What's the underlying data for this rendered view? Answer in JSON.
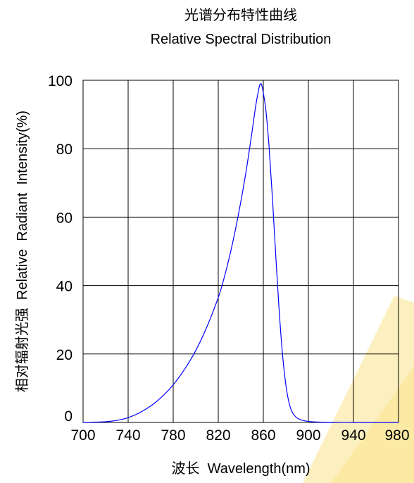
{
  "chart_data": {
    "type": "line",
    "title": "光谱分布特性曲线",
    "subtitle": "Relative Spectral Distribution",
    "xlabel": "波长  Wavelength(nm)",
    "ylabel": "相对辐射光强  Relative  Radiant  Intensity(%)",
    "xlim": [
      700,
      980
    ],
    "ylim": [
      0,
      100
    ],
    "x_ticks": [
      700,
      740,
      780,
      820,
      860,
      900,
      940,
      980
    ],
    "y_ticks": [
      0,
      20,
      40,
      60,
      80,
      100
    ],
    "x_tick_labels": [
      "700",
      "740",
      "780",
      "820",
      "860",
      "900",
      "940",
      "980"
    ],
    "y_tick_labels": [
      "0",
      "20",
      "40",
      "60",
      "80",
      "100"
    ],
    "grid": true,
    "legend": "none",
    "series_color": "#0000ff",
    "series": [
      {
        "x": [
          700,
          720,
          730,
          740,
          750,
          760,
          770,
          780,
          790,
          800,
          810,
          820,
          825,
          830,
          835,
          840,
          845,
          850,
          853,
          856,
          857.5,
          859,
          862,
          865,
          868,
          871,
          874,
          877,
          880,
          883,
          886,
          890,
          895,
          900,
          910,
          920,
          940,
          960,
          980
        ],
        "y": [
          0,
          0.2,
          0.6,
          1.4,
          2.8,
          4.8,
          7.5,
          11,
          15.5,
          21,
          28,
          36.5,
          42,
          48.5,
          56,
          64.5,
          74,
          85,
          92,
          97.5,
          99,
          98,
          92,
          81,
          66,
          49,
          33,
          20,
          11,
          5.5,
          2.8,
          1.3,
          0.6,
          0.3,
          0.1,
          0.05,
          0,
          0,
          0
        ]
      }
    ]
  }
}
